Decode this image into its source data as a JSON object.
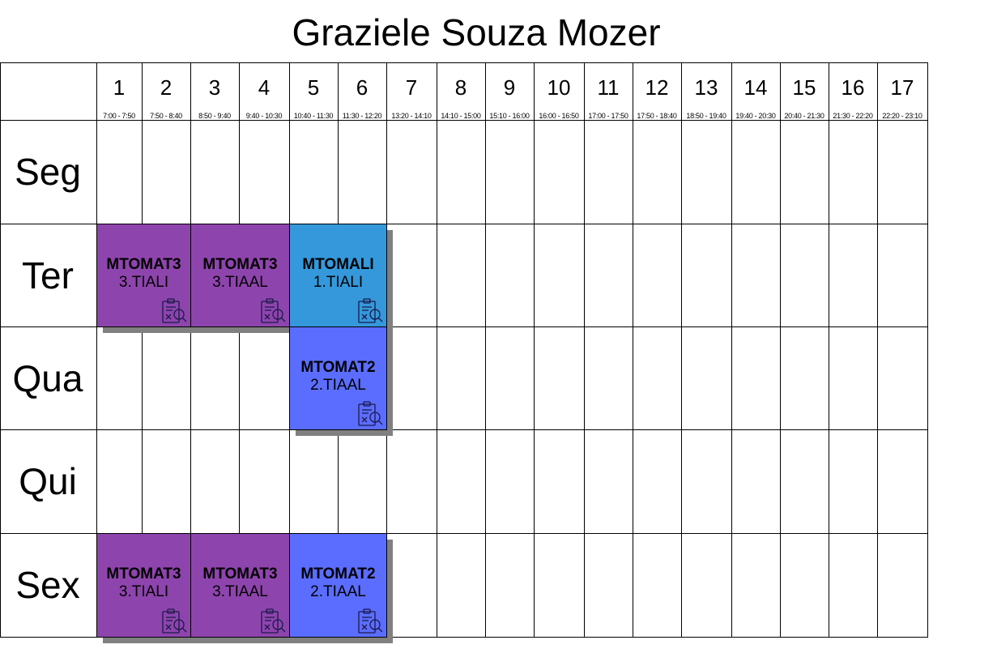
{
  "title": "Graziele Souza Mozer",
  "periods": [
    {
      "num": "1",
      "time": "7:00 - 7:50"
    },
    {
      "num": "2",
      "time": "7:50 - 8:40"
    },
    {
      "num": "3",
      "time": "8:50 - 9:40"
    },
    {
      "num": "4",
      "time": "9:40 - 10:30"
    },
    {
      "num": "5",
      "time": "10:40 - 11:30"
    },
    {
      "num": "6",
      "time": "11:30 - 12:20"
    },
    {
      "num": "7",
      "time": "13:20 - 14:10"
    },
    {
      "num": "8",
      "time": "14:10 - 15:00"
    },
    {
      "num": "9",
      "time": "15:10 - 16:00"
    },
    {
      "num": "10",
      "time": "16:00 - 16:50"
    },
    {
      "num": "11",
      "time": "17:00 - 17:50"
    },
    {
      "num": "12",
      "time": "17:50 - 18:40"
    },
    {
      "num": "13",
      "time": "18:50 - 19:40"
    },
    {
      "num": "14",
      "time": "19:40 - 20:30"
    },
    {
      "num": "15",
      "time": "20:40 - 21:30"
    },
    {
      "num": "16",
      "time": "21:30 - 22:20"
    },
    {
      "num": "17",
      "time": "22:20 - 23:10"
    }
  ],
  "days": [
    "Seg",
    "Ter",
    "Qua",
    "Qui",
    "Sex"
  ],
  "classes": [
    {
      "day": 1,
      "start": 1,
      "span": 2,
      "code": "MTOMAT3",
      "group": "3.TIALI",
      "color": "#8e44ad",
      "icon": "clipboard-search-icon"
    },
    {
      "day": 1,
      "start": 3,
      "span": 2,
      "code": "MTOMAT3",
      "group": "3.TIAAL",
      "color": "#8e44ad",
      "icon": "clipboard-search-icon"
    },
    {
      "day": 1,
      "start": 5,
      "span": 2,
      "code": "MTOMALI",
      "group": "1.TIALI",
      "color": "#3498db",
      "icon": "clipboard-search-icon"
    },
    {
      "day": 2,
      "start": 5,
      "span": 2,
      "code": "MTOMAT2",
      "group": "2.TIAAL",
      "color": "#5b6dff",
      "icon": "clipboard-search-icon"
    },
    {
      "day": 4,
      "start": 1,
      "span": 2,
      "code": "MTOMAT3",
      "group": "3.TIALI",
      "color": "#8e44ad",
      "icon": "clipboard-search-icon"
    },
    {
      "day": 4,
      "start": 3,
      "span": 2,
      "code": "MTOMAT3",
      "group": "3.TIAAL",
      "color": "#8e44ad",
      "icon": "clipboard-search-icon"
    },
    {
      "day": 4,
      "start": 5,
      "span": 2,
      "code": "MTOMAT2",
      "group": "2.TIAAL",
      "color": "#5b6dff",
      "icon": "clipboard-search-icon"
    }
  ]
}
